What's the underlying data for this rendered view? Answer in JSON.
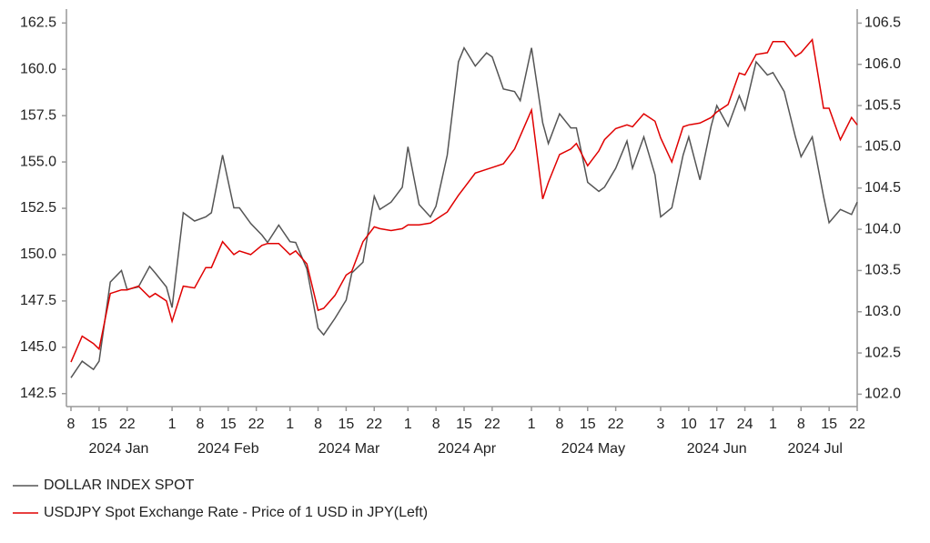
{
  "chart_data": {
    "type": "line",
    "x": [
      "2024-01-08",
      "2024-01-10",
      "2024-01-12",
      "2024-01-15",
      "2024-01-17",
      "2024-01-19",
      "2024-01-22",
      "2024-01-24",
      "2024-01-26",
      "2024-01-29",
      "2024-01-31",
      "2024-02-01",
      "2024-02-05",
      "2024-02-07",
      "2024-02-09",
      "2024-02-12",
      "2024-02-14",
      "2024-02-16",
      "2024-02-19",
      "2024-02-21",
      "2024-02-23",
      "2024-02-26",
      "2024-02-28",
      "2024-03-01",
      "2024-03-04",
      "2024-03-06",
      "2024-03-08",
      "2024-03-11",
      "2024-03-13",
      "2024-03-15",
      "2024-03-18",
      "2024-03-20",
      "2024-03-22",
      "2024-03-25",
      "2024-03-27",
      "2024-03-29",
      "2024-04-01",
      "2024-04-03",
      "2024-04-05",
      "2024-04-08",
      "2024-04-10",
      "2024-04-12",
      "2024-04-15",
      "2024-04-17",
      "2024-04-19",
      "2024-04-22",
      "2024-04-24",
      "2024-04-26",
      "2024-04-29",
      "2024-05-01",
      "2024-05-03",
      "2024-05-06",
      "2024-05-08",
      "2024-05-10",
      "2024-05-13",
      "2024-05-15",
      "2024-05-17",
      "2024-05-20",
      "2024-05-22",
      "2024-05-24",
      "2024-05-27",
      "2024-05-29",
      "2024-05-31",
      "2024-06-03",
      "2024-06-05",
      "2024-06-07",
      "2024-06-10",
      "2024-06-12",
      "2024-06-14",
      "2024-06-17",
      "2024-06-19",
      "2024-06-21",
      "2024-06-24",
      "2024-06-26",
      "2024-06-28",
      "2024-07-01",
      "2024-07-03",
      "2024-07-05",
      "2024-07-08",
      "2024-07-10",
      "2024-07-12",
      "2024-07-15",
      "2024-07-17",
      "2024-07-19",
      "2024-07-22"
    ],
    "series": [
      {
        "name": "DOLLAR INDEX SPOT",
        "color": "#555555",
        "axis": "y2",
        "values": [
          102.2,
          102.4,
          102.3,
          102.4,
          103.36,
          103.5,
          103.27,
          103.3,
          103.55,
          103.47,
          103.3,
          103.05,
          104.2,
          104.1,
          104.15,
          104.2,
          104.9,
          104.26,
          104.26,
          104.07,
          103.93,
          103.84,
          104.05,
          103.85,
          103.84,
          103.52,
          102.8,
          102.72,
          102.92,
          103.14,
          103.47,
          103.6,
          104.4,
          104.24,
          104.33,
          104.51,
          105.0,
          104.3,
          104.15,
          104.28,
          104.9,
          106.03,
          106.2,
          105.98,
          106.14,
          106.09,
          105.7,
          105.67,
          105.56,
          106.2,
          105.29,
          105.04,
          105.4,
          105.23,
          105.23,
          104.57,
          104.46,
          104.51,
          104.74,
          105.07,
          104.74,
          105.12,
          104.66,
          104.15,
          104.26,
          104.9,
          105.12,
          104.6,
          105.25,
          105.5,
          105.25,
          105.62,
          105.45,
          106.03,
          105.87,
          105.9,
          105.67,
          105.12,
          104.88,
          105.12,
          104.4,
          104.08,
          104.24,
          104.18,
          104.33
        ]
      },
      {
        "name": "USDJPY Spot Exchange Rate - Price of 1 USD in JPY(Left)",
        "color": "#e00000",
        "values": [
          144.2,
          145.6,
          145.2,
          144.9,
          147.9,
          148.1,
          148.1,
          148.3,
          147.7,
          147.9,
          147.5,
          146.4,
          148.3,
          148.2,
          149.3,
          149.3,
          150.7,
          150.0,
          150.2,
          150.0,
          150.5,
          150.6,
          150.6,
          150.0,
          150.2,
          149.5,
          147.0,
          147.1,
          147.8,
          148.9,
          149.1,
          150.7,
          151.5,
          151.4,
          151.3,
          151.4,
          151.6,
          151.6,
          151.7,
          151.9,
          152.3,
          153.2,
          153.6,
          154.4,
          154.6,
          154.7,
          154.9,
          155.7,
          156.4,
          157.8,
          153.0,
          153.9,
          155.4,
          155.7,
          156.0,
          154.8,
          155.6,
          156.2,
          156.8,
          157.0,
          156.9,
          157.6,
          157.2,
          156.3,
          155.0,
          156.9,
          157.0,
          157.1,
          157.4,
          157.7,
          158.1,
          159.8,
          159.7,
          160.8,
          160.9,
          161.5,
          161.5,
          160.7,
          160.9,
          161.6,
          157.9,
          157.9,
          156.2,
          157.4,
          157.0
        ]
      }
    ],
    "xlim": [
      "2024-01-08",
      "2024-07-22"
    ],
    "xticks": [
      {
        "value": "2024-01-08",
        "label": "8"
      },
      {
        "value": "2024-01-15",
        "label": "15"
      },
      {
        "value": "2024-01-22",
        "label": "22"
      },
      {
        "value": "2024-02-01",
        "label": "1"
      },
      {
        "value": "2024-02-08",
        "label": "8"
      },
      {
        "value": "2024-02-15",
        "label": "15"
      },
      {
        "value": "2024-02-22",
        "label": "22"
      },
      {
        "value": "2024-03-01",
        "label": "1"
      },
      {
        "value": "2024-03-08",
        "label": "8"
      },
      {
        "value": "2024-03-15",
        "label": "15"
      },
      {
        "value": "2024-03-22",
        "label": "22"
      },
      {
        "value": "2024-04-01",
        "label": "1"
      },
      {
        "value": "2024-04-08",
        "label": "8"
      },
      {
        "value": "2024-04-15",
        "label": "15"
      },
      {
        "value": "2024-04-22",
        "label": "22"
      },
      {
        "value": "2024-05-01",
        "label": "1"
      },
      {
        "value": "2024-05-08",
        "label": "8"
      },
      {
        "value": "2024-05-15",
        "label": "15"
      },
      {
        "value": "2024-05-22",
        "label": "22"
      },
      {
        "value": "2024-06-03",
        "label": "3"
      },
      {
        "value": "2024-06-10",
        "label": "10"
      },
      {
        "value": "2024-06-17",
        "label": "17"
      },
      {
        "value": "2024-06-24",
        "label": "24"
      },
      {
        "value": "2024-07-01",
        "label": "1"
      },
      {
        "value": "2024-07-08",
        "label": "8"
      },
      {
        "value": "2024-07-15",
        "label": "15"
      },
      {
        "value": "2024-07-22",
        "label": "22"
      }
    ],
    "xtick_groups": [
      {
        "value": "2024-01",
        "label": "2024 Jan"
      },
      {
        "value": "2024-02",
        "label": "2024 Feb"
      },
      {
        "value": "2024-03",
        "label": "2024 Mar"
      },
      {
        "value": "2024-04",
        "label": "2024 Apr"
      },
      {
        "value": "2024-05",
        "label": "2024 May"
      },
      {
        "value": "2024-06",
        "label": "2024 Jun"
      },
      {
        "value": "2024-07",
        "label": "2024 Jul"
      }
    ],
    "ylim": [
      141.8,
      163.25
    ],
    "yticks": [
      142.5,
      {
        "value": 145,
        "label": "145.0"
      },
      147.5,
      {
        "value": 150,
        "label": "150.0"
      },
      152.5,
      {
        "value": 155,
        "label": "155.0"
      },
      157.5,
      {
        "value": 160,
        "label": "160.0"
      },
      162.5
    ],
    "y2lim": [
      101.85,
      106.67
    ],
    "y2ticks": [
      {
        "value": 102,
        "label": "102.0"
      },
      102.5,
      {
        "value": 103,
        "label": "103.0"
      },
      103.5,
      {
        "value": 104,
        "label": "104.0"
      },
      104.5,
      {
        "value": 105,
        "label": "105.0"
      },
      105.5,
      {
        "value": 106,
        "label": "106.0"
      },
      106.5
    ],
    "grid": false,
    "legend": "bottom-left"
  }
}
